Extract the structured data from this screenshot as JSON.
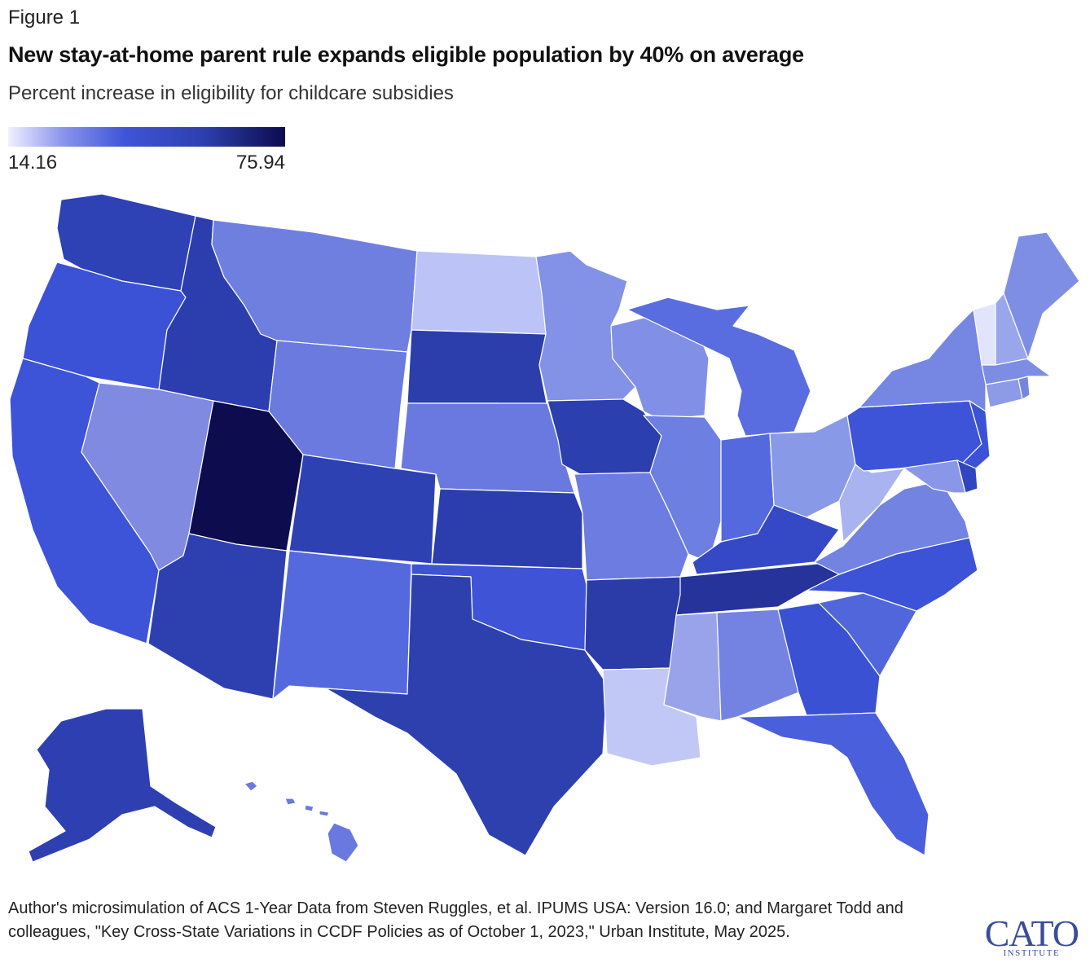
{
  "header": {
    "figure_label": "Figure 1",
    "title": "New stay-at-home parent rule expands eligible population by 40% on average",
    "subtitle": "Percent increase in eligibility for childcare subsidies"
  },
  "legend": {
    "min_label": "14.16",
    "max_label": "75.94",
    "min": 14.16,
    "max": 75.94
  },
  "map_data": {
    "type": "choropleth",
    "region": "United States",
    "color_scale": [
      "#f0f0ff",
      "#8a93ec",
      "#3f55d8",
      "#2e3fb0",
      "#0c0c4e"
    ],
    "states": [
      {
        "id": "WA",
        "color": "#2e41b5"
      },
      {
        "id": "OR",
        "color": "#3b52d6"
      },
      {
        "id": "CA",
        "color": "#3d54d9"
      },
      {
        "id": "NV",
        "color": "#7f8ae0"
      },
      {
        "id": "ID",
        "color": "#2c3eae"
      },
      {
        "id": "MT",
        "color": "#6f7fe0"
      },
      {
        "id": "WY",
        "color": "#6a7ade"
      },
      {
        "id": "UT",
        "color": "#0c0c4e"
      },
      {
        "id": "AZ",
        "color": "#2e40b0"
      },
      {
        "id": "CO",
        "color": "#2e41b3"
      },
      {
        "id": "NM",
        "color": "#5569df"
      },
      {
        "id": "ND",
        "color": "#bcc3f6"
      },
      {
        "id": "SD",
        "color": "#2c3eab"
      },
      {
        "id": "NE",
        "color": "#6a79df"
      },
      {
        "id": "KS",
        "color": "#2c3ead"
      },
      {
        "id": "OK",
        "color": "#3e53d6"
      },
      {
        "id": "TX",
        "color": "#2d40ae"
      },
      {
        "id": "MN",
        "color": "#8391e6"
      },
      {
        "id": "IA",
        "color": "#2c3faf"
      },
      {
        "id": "MO",
        "color": "#6d7ce0"
      },
      {
        "id": "AR",
        "color": "#2b3ca8"
      },
      {
        "id": "LA",
        "color": "#c1c8f6"
      },
      {
        "id": "WI",
        "color": "#8190e6"
      },
      {
        "id": "IL",
        "color": "#6e7fe2"
      },
      {
        "id": "MI",
        "color": "#5a6de0"
      },
      {
        "id": "IN",
        "color": "#5569df"
      },
      {
        "id": "OH",
        "color": "#8899e8"
      },
      {
        "id": "KY",
        "color": "#3549c6"
      },
      {
        "id": "TN",
        "color": "#25339b"
      },
      {
        "id": "MS",
        "color": "#98a3ea"
      },
      {
        "id": "AL",
        "color": "#7483e2"
      },
      {
        "id": "GA",
        "color": "#3b51d4"
      },
      {
        "id": "FL",
        "color": "#4a5fdc"
      },
      {
        "id": "SC",
        "color": "#5266dc"
      },
      {
        "id": "NC",
        "color": "#3c52d7"
      },
      {
        "id": "VA",
        "color": "#7383e2"
      },
      {
        "id": "WV",
        "color": "#a9b3f0"
      },
      {
        "id": "PA",
        "color": "#3e54d8"
      },
      {
        "id": "NY",
        "color": "#7686e3"
      },
      {
        "id": "NJ",
        "color": "#3c52d6"
      },
      {
        "id": "DE",
        "color": "#3045c0"
      },
      {
        "id": "MD",
        "color": "#8a97e8"
      },
      {
        "id": "CT",
        "color": "#8d9ae8"
      },
      {
        "id": "RI",
        "color": "#7585e2"
      },
      {
        "id": "MA",
        "color": "#7e8de4"
      },
      {
        "id": "VT",
        "color": "#e1e4fa"
      },
      {
        "id": "NH",
        "color": "#99a6ec"
      },
      {
        "id": "ME",
        "color": "#7f8ee5"
      },
      {
        "id": "AK",
        "color": "#2e40b1"
      },
      {
        "id": "HI",
        "color": "#6979df"
      }
    ]
  },
  "footer": {
    "source": "Author's microsimulation of ACS 1-Year Data from Steven Ruggles, et al. IPUMS USA: Version 16.0; and Margaret Todd and colleagues, \"Key Cross-State Variations in CCDF Policies as of October 1, 2023,\" Urban Institute, May 2025.",
    "logo_main": "CATO",
    "logo_sub": "INSTITUTE"
  }
}
